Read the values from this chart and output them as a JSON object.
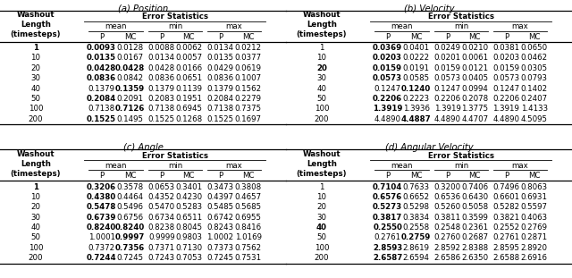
{
  "title_a": "(a) Position",
  "title_b": "(b) Velocity",
  "title_c": "(c) Angle",
  "title_d": "(d) Angular Velocity",
  "washout_lengths": [
    "1",
    "10",
    "20",
    "30",
    "40",
    "50",
    "100",
    "200"
  ],
  "table_a": {
    "mean_P": [
      "0.0093",
      "0.0135",
      "0.0428",
      "0.0836",
      "0.1379",
      "0.2084",
      "0.7138",
      "0.1525"
    ],
    "mean_MC": [
      "0.0128",
      "0.0167",
      "0.0428",
      "0.0842",
      "0.1359",
      "0.2091",
      "0.7126",
      "0.1495"
    ],
    "min_P": [
      "0.0088",
      "0.0134",
      "0.0428",
      "0.0836",
      "0.1379",
      "0.2083",
      "0.7138",
      "0.1525"
    ],
    "min_MC": [
      "0.0062",
      "0.0057",
      "0.0166",
      "0.0651",
      "0.1139",
      "0.1951",
      "0.6945",
      "0.1268"
    ],
    "max_P": [
      "0.0134",
      "0.0135",
      "0.0429",
      "0.0836",
      "0.1379",
      "0.2084",
      "0.7138",
      "0.1525"
    ],
    "max_MC": [
      "0.0212",
      "0.0377",
      "0.0619",
      "0.1007",
      "0.1562",
      "0.2279",
      "0.7375",
      "0.1697"
    ]
  },
  "bold_a": {
    "mean_P": [
      true,
      true,
      true,
      true,
      false,
      true,
      false,
      true
    ],
    "mean_MC": [
      false,
      false,
      true,
      false,
      true,
      false,
      true,
      false
    ],
    "min_P": [
      false,
      false,
      false,
      false,
      false,
      false,
      false,
      false
    ],
    "min_MC": [
      false,
      false,
      false,
      false,
      false,
      false,
      false,
      false
    ],
    "max_P": [
      false,
      false,
      false,
      false,
      false,
      false,
      false,
      false
    ],
    "max_MC": [
      false,
      false,
      false,
      false,
      false,
      false,
      false,
      false
    ]
  },
  "table_b": {
    "mean_P": [
      "0.0369",
      "0.0203",
      "0.0159",
      "0.0573",
      "0.1247",
      "0.2206",
      "1.3919",
      "4.4890"
    ],
    "mean_MC": [
      "0.0401",
      "0.0222",
      "0.0191",
      "0.0585",
      "0.1240",
      "0.2223",
      "1.3936",
      "4.4887"
    ],
    "min_P": [
      "0.0249",
      "0.0201",
      "0.0159",
      "0.0573",
      "0.1247",
      "0.2206",
      "1.3919",
      "4.4890"
    ],
    "min_MC": [
      "0.0210",
      "0.0061",
      "0.0121",
      "0.0405",
      "0.0994",
      "0.2078",
      "1.3775",
      "4.4707"
    ],
    "max_P": [
      "0.0381",
      "0.0203",
      "0.0159",
      "0.0573",
      "0.1247",
      "0.2206",
      "1.3919",
      "4.4890"
    ],
    "max_MC": [
      "0.0650",
      "0.0462",
      "0.0305",
      "0.0793",
      "0.1402",
      "0.2407",
      "1.4133",
      "4.5095"
    ]
  },
  "bold_b": {
    "mean_P": [
      true,
      true,
      true,
      true,
      false,
      true,
      true,
      false
    ],
    "mean_MC": [
      false,
      false,
      false,
      false,
      true,
      false,
      false,
      true
    ],
    "min_P": [
      false,
      false,
      false,
      false,
      false,
      false,
      false,
      false
    ],
    "min_MC": [
      false,
      false,
      false,
      false,
      false,
      false,
      false,
      false
    ],
    "max_P": [
      false,
      false,
      false,
      false,
      false,
      false,
      false,
      false
    ],
    "max_MC": [
      false,
      false,
      false,
      false,
      false,
      false,
      false,
      false
    ]
  },
  "table_c": {
    "mean_P": [
      "0.3206",
      "0.4380",
      "0.5478",
      "0.6739",
      "0.8240",
      "1.0001",
      "0.7372",
      "0.7244"
    ],
    "mean_MC": [
      "0.3578",
      "0.4464",
      "0.5496",
      "0.6756",
      "0.8240",
      "0.9997",
      "0.7356",
      "0.7245"
    ],
    "min_P": [
      "0.0653",
      "0.4352",
      "0.5470",
      "0.6734",
      "0.8238",
      "0.9999",
      "0.7371",
      "0.7243"
    ],
    "min_MC": [
      "0.3401",
      "0.4230",
      "0.5283",
      "0.6511",
      "0.8045",
      "0.9803",
      "0.7130",
      "0.7053"
    ],
    "max_P": [
      "0.3473",
      "0.4397",
      "0.5485",
      "0.6742",
      "0.8243",
      "1.0002",
      "0.7373",
      "0.7245"
    ],
    "max_MC": [
      "0.3808",
      "0.4657",
      "0.5685",
      "0.6955",
      "0.8416",
      "1.0169",
      "0.7562",
      "0.7531"
    ]
  },
  "bold_c": {
    "mean_P": [
      true,
      true,
      true,
      true,
      true,
      false,
      false,
      true
    ],
    "mean_MC": [
      false,
      false,
      false,
      false,
      true,
      true,
      true,
      false
    ],
    "min_P": [
      false,
      false,
      false,
      false,
      false,
      false,
      false,
      false
    ],
    "min_MC": [
      false,
      false,
      false,
      false,
      false,
      false,
      false,
      false
    ],
    "max_P": [
      false,
      false,
      false,
      false,
      false,
      false,
      false,
      false
    ],
    "max_MC": [
      false,
      false,
      false,
      false,
      false,
      false,
      false,
      false
    ]
  },
  "table_d": {
    "mean_P": [
      "0.7104",
      "0.6576",
      "0.5273",
      "0.3817",
      "0.2550",
      "0.2761",
      "2.8593",
      "2.6587"
    ],
    "mean_MC": [
      "0.7633",
      "0.6652",
      "0.5298",
      "0.3834",
      "0.2558",
      "0.2759",
      "2.8619",
      "2.6594"
    ],
    "min_P": [
      "0.3200",
      "0.6536",
      "0.5260",
      "0.3811",
      "0.2548",
      "0.2760",
      "2.8592",
      "2.6586"
    ],
    "min_MC": [
      "0.7406",
      "0.6430",
      "0.5058",
      "0.3599",
      "0.2361",
      "0.2687",
      "2.8388",
      "2.6350"
    ],
    "max_P": [
      "0.7496",
      "0.6601",
      "0.5282",
      "0.3821",
      "0.2552",
      "0.2761",
      "2.8595",
      "2.6588"
    ],
    "max_MC": [
      "0.8063",
      "0.6931",
      "0.5597",
      "0.4063",
      "0.2769",
      "0.2871",
      "2.8920",
      "2.6916"
    ]
  },
  "bold_d": {
    "mean_P": [
      true,
      true,
      true,
      true,
      true,
      false,
      true,
      true
    ],
    "mean_MC": [
      false,
      false,
      false,
      false,
      false,
      true,
      false,
      false
    ],
    "min_P": [
      false,
      false,
      false,
      false,
      false,
      false,
      false,
      false
    ],
    "min_MC": [
      false,
      false,
      false,
      false,
      false,
      false,
      false,
      false
    ],
    "max_P": [
      false,
      false,
      false,
      false,
      false,
      false,
      false,
      false
    ],
    "max_MC": [
      false,
      false,
      false,
      false,
      false,
      false,
      false,
      false
    ]
  },
  "bold_washout_a": [
    true,
    false,
    false,
    false,
    false,
    false,
    false,
    false
  ],
  "bold_washout_b": [
    false,
    false,
    true,
    false,
    false,
    false,
    false,
    false
  ],
  "bold_washout_c": [
    true,
    false,
    false,
    false,
    false,
    false,
    false,
    false
  ],
  "bold_washout_d": [
    false,
    false,
    false,
    false,
    true,
    false,
    false,
    false
  ]
}
